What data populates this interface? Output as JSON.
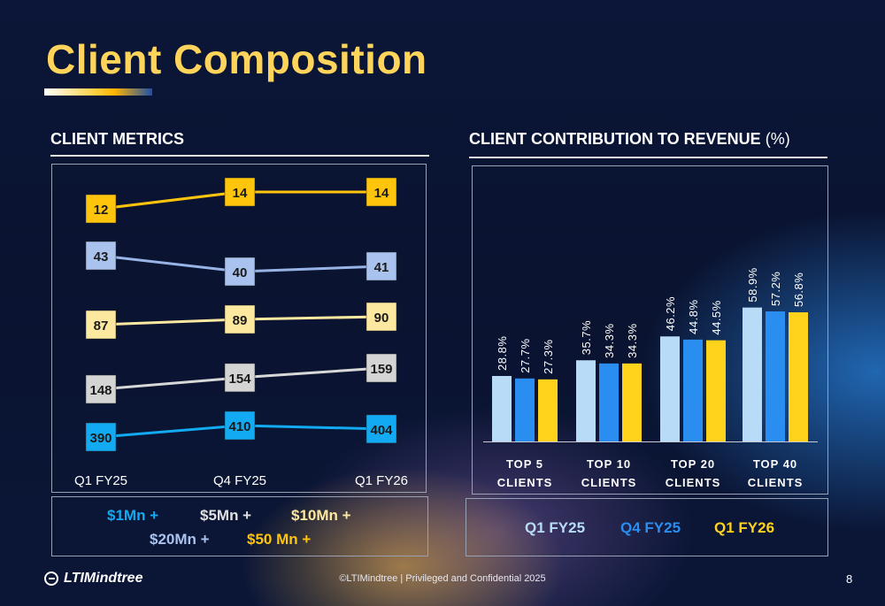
{
  "header": {
    "title": "Client Composition"
  },
  "left": {
    "heading": "CLIENT METRICS"
  },
  "right": {
    "heading": "CLIENT CONTRIBUTION TO REVENUE",
    "heading_unit": "(%)"
  },
  "legend_left": [
    {
      "label": "$1Mn +",
      "color": "#12aaf2"
    },
    {
      "label": "$5Mn +",
      "color": "#e0e0e0"
    },
    {
      "label": "$10Mn +",
      "color": "#fde8a0"
    },
    {
      "label": "$20Mn +",
      "color": "#a9c3ee"
    },
    {
      "label": "$50 Mn +",
      "color": "#ffc40c"
    }
  ],
  "legend_right": [
    {
      "label": "Q1 FY25",
      "color": "#b8dcf8"
    },
    {
      "label": "Q4 FY25",
      "color": "#2a8ef0"
    },
    {
      "label": "Q1 FY26",
      "color": "#ffd21c"
    }
  ],
  "footer": {
    "logo": "LTIMindtree",
    "text": "©LTIMindtree | Privileged and Confidential 2025",
    "page": "8"
  },
  "chart_data": [
    {
      "type": "line",
      "title": "CLIENT METRICS",
      "x": [
        "Q1 FY25",
        "Q4 FY25",
        "Q1 FY26"
      ],
      "series": [
        {
          "name": "$50 Mn +",
          "values": [
            12,
            14,
            14
          ],
          "line": "#ffc40c",
          "box": "#ffc40c",
          "text": "#1a1a1a"
        },
        {
          "name": "$20Mn +",
          "values": [
            43,
            40,
            41
          ],
          "line": "#98b4e6",
          "box": "#a9c3ee",
          "text": "#1a1a1a"
        },
        {
          "name": "$10Mn +",
          "values": [
            87,
            89,
            90
          ],
          "line": "#fde8a0",
          "box": "#fde8a0",
          "text": "#1a1a1a"
        },
        {
          "name": "$5Mn +",
          "values": [
            148,
            154,
            159
          ],
          "line": "#d8d8d8",
          "box": "#d4d4d4",
          "text": "#1a1a1a"
        },
        {
          "name": "$1Mn +",
          "values": [
            390,
            410,
            404
          ],
          "line": "#12aaf2",
          "box": "#12aaf2",
          "text": "#1a1a1a"
        }
      ]
    },
    {
      "type": "bar",
      "title": "CLIENT CONTRIBUTION TO REVENUE (%)",
      "categories": [
        "TOP 5 CLIENTS",
        "TOP 10 CLIENTS",
        "TOP 20 CLIENTS",
        "TOP 40 CLIENTS"
      ],
      "series": [
        {
          "name": "Q1 FY25",
          "values": [
            28.8,
            35.7,
            46.2,
            58.9
          ],
          "color": "#b8dcf8"
        },
        {
          "name": "Q4 FY25",
          "values": [
            27.7,
            34.3,
            44.8,
            57.2
          ],
          "color": "#2a8ef0"
        },
        {
          "name": "Q1 FY26",
          "values": [
            27.3,
            34.3,
            44.5,
            56.8
          ],
          "color": "#ffd21c"
        }
      ],
      "data_label_suffix": "%"
    }
  ]
}
